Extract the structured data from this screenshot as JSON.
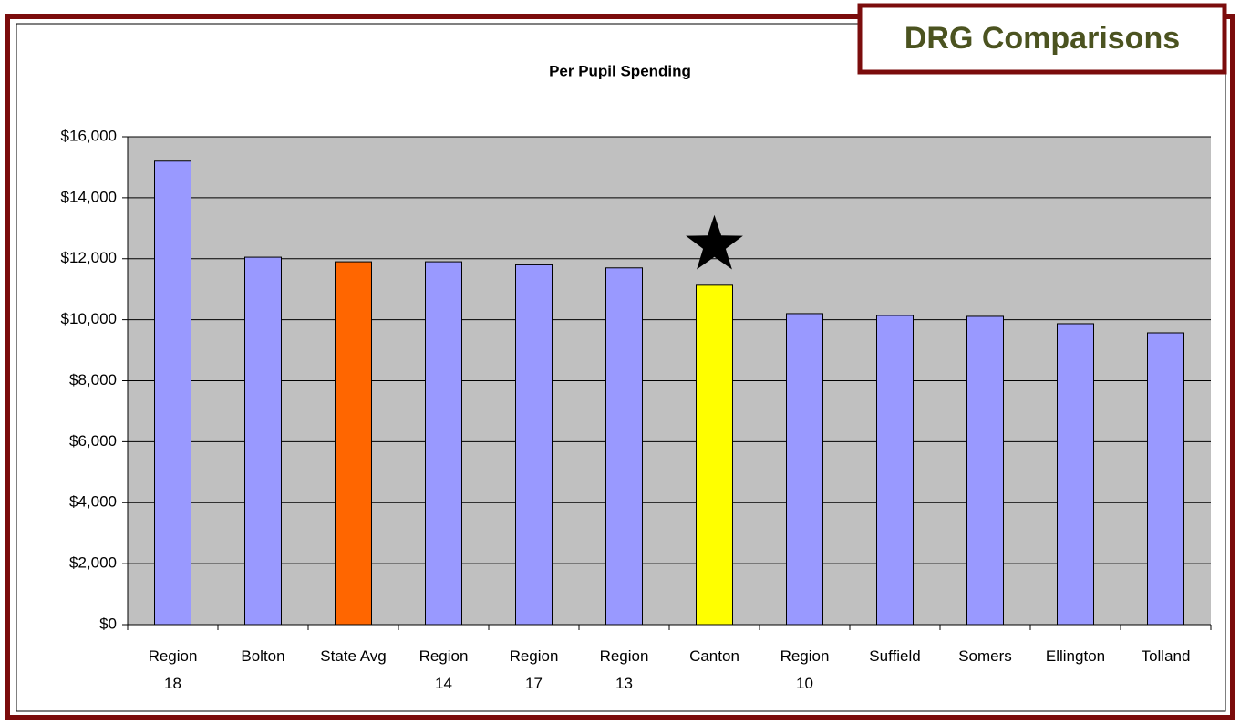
{
  "chart_data": {
    "type": "bar",
    "title": "Per Pupil Spending",
    "badge": "DRG Comparisons",
    "categories": [
      "Region\n18",
      "Bolton",
      "State Avg",
      "Region\n14",
      "Region\n17",
      "Region\n13",
      "Canton",
      "Region\n10",
      "Suffield",
      "Somers",
      "Ellington",
      "Tolland"
    ],
    "values": [
      15200,
      12050,
      11900,
      11900,
      11800,
      11700,
      11130,
      10200,
      10140,
      10110,
      9870,
      9570
    ],
    "colors": [
      "#9999ff",
      "#9999ff",
      "#ff6600",
      "#9999ff",
      "#9999ff",
      "#9999ff",
      "#ffff00",
      "#9999ff",
      "#9999ff",
      "#9999ff",
      "#9999ff",
      "#9999ff"
    ],
    "ylim": [
      0,
      16000
    ],
    "yticks": [
      {
        "value": 0,
        "label": "$0"
      },
      {
        "value": 2000,
        "label": "$2,000"
      },
      {
        "value": 4000,
        "label": "$4,000"
      },
      {
        "value": 6000,
        "label": "$6,000"
      },
      {
        "value": 8000,
        "label": "$8,000"
      },
      {
        "value": 10000,
        "label": "$10,000"
      },
      {
        "value": 12000,
        "label": "$12,000"
      },
      {
        "value": 14000,
        "label": "$14,000"
      },
      {
        "value": 16000,
        "label": "$16,000"
      }
    ],
    "grid": true
  }
}
